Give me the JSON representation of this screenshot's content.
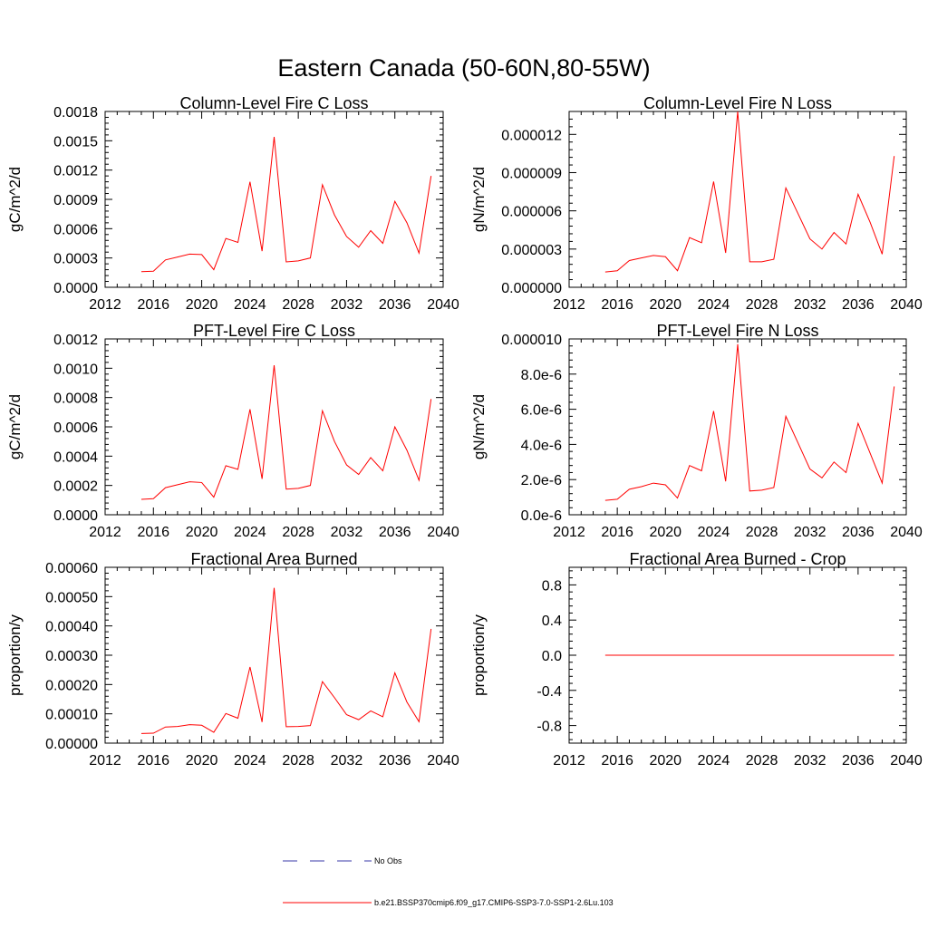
{
  "figure": {
    "title": "Eastern Canada (50-60N,80-55W)"
  },
  "legend": {
    "entries": [
      {
        "label": "No Obs",
        "color": "#3a3aa8",
        "style": "dashed"
      },
      {
        "label": "b.e21.BSSP370cmip6.f09_g17.CMIP6-SSP3-7.0-SSP1-2.6Lu.103",
        "color": "#ff0000",
        "style": "solid"
      }
    ]
  },
  "chart_data": [
    {
      "type": "line",
      "title": "Column-Level Fire C Loss",
      "xlabel": "",
      "ylabel": "gC/m^2/d",
      "xlim": [
        2012,
        2040
      ],
      "ylim": [
        0,
        0.0018
      ],
      "xticks": [
        2012,
        2016,
        2020,
        2024,
        2028,
        2032,
        2036,
        2040
      ],
      "xtick_labels": [
        "2012",
        "2016",
        "2020",
        "2024",
        "2028",
        "2032",
        "2036",
        "2040"
      ],
      "yticks": [
        0,
        0.0003,
        0.0006,
        0.0009,
        0.0012,
        0.0015,
        0.0018
      ],
      "ytick_labels": [
        "0.0000",
        "0.0003",
        "0.0006",
        "0.0009",
        "0.0012",
        "0.0015",
        "0.0018"
      ],
      "series": [
        {
          "color": "#ff0000",
          "x": [
            2015,
            2016,
            2017,
            2018,
            2019,
            2020,
            2021,
            2022,
            2023,
            2024,
            2025,
            2026,
            2027,
            2028,
            2029,
            2030,
            2031,
            2032,
            2033,
            2034,
            2035,
            2036,
            2037,
            2038,
            2039
          ],
          "y": [
            0.00016,
            0.000165,
            0.00028,
            0.00031,
            0.00034,
            0.000335,
            0.00018,
            0.0005,
            0.00046,
            0.00108,
            0.00037,
            0.00154,
            0.00026,
            0.00027,
            0.0003,
            0.00105,
            0.00074,
            0.00052,
            0.00041,
            0.00058,
            0.00045,
            0.00088,
            0.00066,
            0.00035,
            0.00114
          ]
        }
      ]
    },
    {
      "type": "line",
      "title": "Column-Level Fire N Loss",
      "xlabel": "",
      "ylabel": "gN/m^2/d",
      "xlim": [
        2012,
        2040
      ],
      "ylim": [
        0,
        1.38e-05
      ],
      "xticks": [
        2012,
        2016,
        2020,
        2024,
        2028,
        2032,
        2036,
        2040
      ],
      "xtick_labels": [
        "2012",
        "2016",
        "2020",
        "2024",
        "2028",
        "2032",
        "2036",
        "2040"
      ],
      "yticks": [
        0,
        3e-06,
        6e-06,
        9e-06,
        1.2e-05
      ],
      "ytick_labels": [
        "0.000000",
        "0.000003",
        "0.000006",
        "0.000009",
        "0.000012"
      ],
      "series": [
        {
          "color": "#ff0000",
          "x": [
            2015,
            2016,
            2017,
            2018,
            2019,
            2020,
            2021,
            2022,
            2023,
            2024,
            2025,
            2026,
            2027,
            2028,
            2029,
            2030,
            2031,
            2032,
            2033,
            2034,
            2035,
            2036,
            2037,
            2038,
            2039
          ],
          "y": [
            1.2e-06,
            1.3e-06,
            2.1e-06,
            2.3e-06,
            2.5e-06,
            2.4e-06,
            1.3e-06,
            3.9e-06,
            3.5e-06,
            8.3e-06,
            2.7e-06,
            1.38e-05,
            2e-06,
            2e-06,
            2.2e-06,
            7.8e-06,
            5.8e-06,
            3.8e-06,
            3e-06,
            4.3e-06,
            3.4e-06,
            7.3e-06,
            5.1e-06,
            2.6e-06,
            1.03e-05
          ]
        }
      ]
    },
    {
      "type": "line",
      "title": "PFT-Level Fire C Loss",
      "xlabel": "",
      "ylabel": "gC/m^2/d",
      "xlim": [
        2012,
        2040
      ],
      "ylim": [
        0,
        0.0012
      ],
      "xticks": [
        2012,
        2016,
        2020,
        2024,
        2028,
        2032,
        2036,
        2040
      ],
      "xtick_labels": [
        "2012",
        "2016",
        "2020",
        "2024",
        "2028",
        "2032",
        "2036",
        "2040"
      ],
      "yticks": [
        0,
        0.0002,
        0.0004,
        0.0006,
        0.0008,
        0.001,
        0.0012
      ],
      "ytick_labels": [
        "0.0000",
        "0.0002",
        "0.0004",
        "0.0006",
        "0.0008",
        "0.0010",
        "0.0012"
      ],
      "series": [
        {
          "color": "#ff0000",
          "x": [
            2015,
            2016,
            2017,
            2018,
            2019,
            2020,
            2021,
            2022,
            2023,
            2024,
            2025,
            2026,
            2027,
            2028,
            2029,
            2030,
            2031,
            2032,
            2033,
            2034,
            2035,
            2036,
            2037,
            2038,
            2039
          ],
          "y": [
            0.000105,
            0.00011,
            0.000185,
            0.000205,
            0.000225,
            0.00022,
            0.00012,
            0.000335,
            0.00031,
            0.00072,
            0.000245,
            0.00102,
            0.000175,
            0.00018,
            0.0002,
            0.00071,
            0.0005,
            0.00034,
            0.000275,
            0.00039,
            0.0003,
            0.0006,
            0.00044,
            0.000235,
            0.00079
          ]
        }
      ]
    },
    {
      "type": "line",
      "title": "PFT-Level Fire N Loss",
      "xlabel": "",
      "ylabel": "gN/m^2/d",
      "xlim": [
        2012,
        2040
      ],
      "ylim": [
        0,
        1e-05
      ],
      "xticks": [
        2012,
        2016,
        2020,
        2024,
        2028,
        2032,
        2036,
        2040
      ],
      "xtick_labels": [
        "2012",
        "2016",
        "2020",
        "2024",
        "2028",
        "2032",
        "2036",
        "2040"
      ],
      "yticks": [
        0,
        2e-06,
        4e-06,
        6e-06,
        8e-06,
        1e-05
      ],
      "ytick_labels": [
        "0.0e-6",
        "2.0e-6",
        "4.0e-6",
        "6.0e-6",
        "8.0e-6",
        "0.000010"
      ],
      "series": [
        {
          "color": "#ff0000",
          "x": [
            2015,
            2016,
            2017,
            2018,
            2019,
            2020,
            2021,
            2022,
            2023,
            2024,
            2025,
            2026,
            2027,
            2028,
            2029,
            2030,
            2031,
            2032,
            2033,
            2034,
            2035,
            2036,
            2037,
            2038,
            2039
          ],
          "y": [
            8.2e-07,
            8.8e-07,
            1.45e-06,
            1.6e-06,
            1.8e-06,
            1.7e-06,
            9.5e-07,
            2.8e-06,
            2.5e-06,
            5.9e-06,
            1.9e-06,
            9.7e-06,
            1.35e-06,
            1.4e-06,
            1.55e-06,
            5.6e-06,
            4.1e-06,
            2.6e-06,
            2.1e-06,
            3e-06,
            2.4e-06,
            5.2e-06,
            3.5e-06,
            1.8e-06,
            7.3e-06
          ]
        }
      ]
    },
    {
      "type": "line",
      "title": "Fractional Area Burned",
      "xlabel": "",
      "ylabel": "proportion/y",
      "xlim": [
        2012,
        2040
      ],
      "ylim": [
        0,
        0.0006
      ],
      "xticks": [
        2012,
        2016,
        2020,
        2024,
        2028,
        2032,
        2036,
        2040
      ],
      "xtick_labels": [
        "2012",
        "2016",
        "2020",
        "2024",
        "2028",
        "2032",
        "2036",
        "2040"
      ],
      "yticks": [
        0,
        0.0001,
        0.0002,
        0.0003,
        0.0004,
        0.0005,
        0.0006
      ],
      "ytick_labels": [
        "0.00000",
        "0.00010",
        "0.00020",
        "0.00030",
        "0.00040",
        "0.00050",
        "0.00060"
      ],
      "series": [
        {
          "color": "#ff0000",
          "x": [
            2015,
            2016,
            2017,
            2018,
            2019,
            2020,
            2021,
            2022,
            2023,
            2024,
            2025,
            2026,
            2027,
            2028,
            2029,
            2030,
            2031,
            2032,
            2033,
            2034,
            2035,
            2036,
            2037,
            2038,
            2039
          ],
          "y": [
            3.3e-05,
            3.4e-05,
            5.5e-05,
            5.7e-05,
            6.3e-05,
            6.1e-05,
            3.7e-05,
            0.000101,
            8.5e-05,
            0.00026,
            7.2e-05,
            0.00053,
            5.6e-05,
            5.7e-05,
            6e-05,
            0.00021,
            0.000155,
            9.7e-05,
            8e-05,
            0.00011,
            9e-05,
            0.00024,
            0.00014,
            7.3e-05,
            0.00039
          ]
        }
      ]
    },
    {
      "type": "line",
      "title": "Fractional Area Burned - Crop",
      "xlabel": "",
      "ylabel": "proportion/y",
      "xlim": [
        2012,
        2040
      ],
      "ylim": [
        -1,
        1
      ],
      "xticks": [
        2012,
        2016,
        2020,
        2024,
        2028,
        2032,
        2036,
        2040
      ],
      "xtick_labels": [
        "2012",
        "2016",
        "2020",
        "2024",
        "2028",
        "2032",
        "2036",
        "2040"
      ],
      "yticks": [
        -0.8,
        -0.4,
        0,
        0.4,
        0.8
      ],
      "ytick_labels": [
        "-0.8",
        "-0.4",
        "0.0",
        "0.4",
        "0.8"
      ],
      "series": [
        {
          "color": "#ff0000",
          "x": [
            2015,
            2016,
            2017,
            2018,
            2019,
            2020,
            2021,
            2022,
            2023,
            2024,
            2025,
            2026,
            2027,
            2028,
            2029,
            2030,
            2031,
            2032,
            2033,
            2034,
            2035,
            2036,
            2037,
            2038,
            2039
          ],
          "y": [
            0,
            0,
            0,
            0,
            0,
            0,
            0,
            0,
            0,
            0,
            0,
            0,
            0,
            0,
            0,
            0,
            0,
            0,
            0,
            0,
            0,
            0,
            0,
            0,
            0
          ]
        }
      ]
    }
  ]
}
